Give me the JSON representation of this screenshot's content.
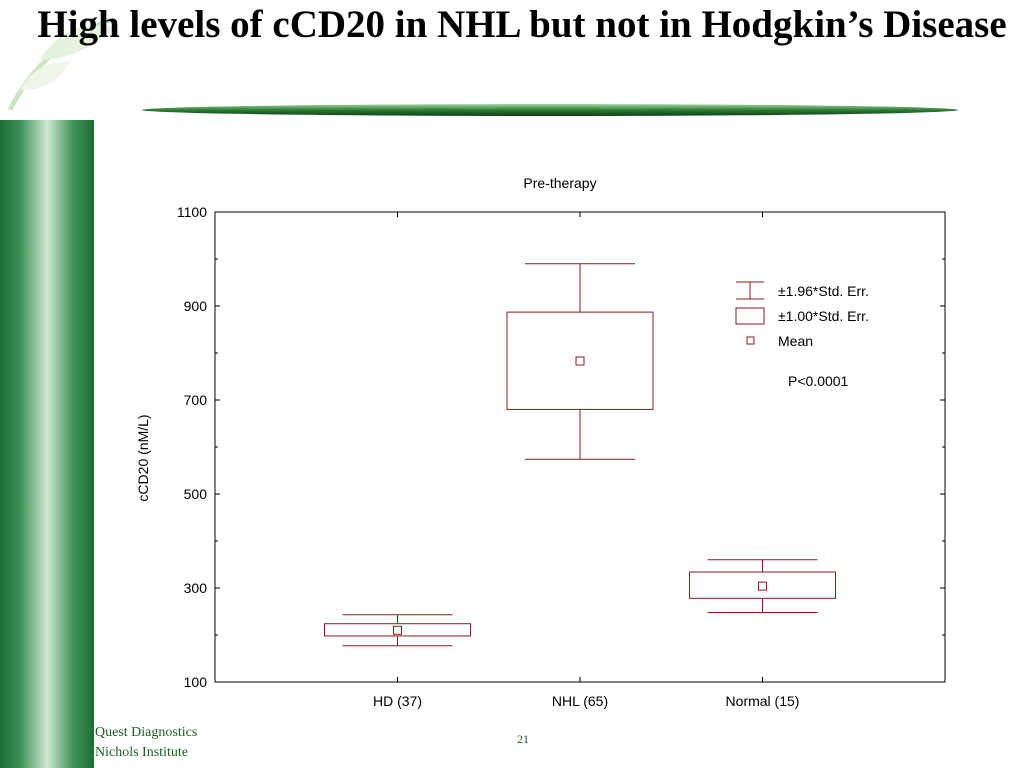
{
  "slide": {
    "title": "High levels of cCD20 in NHL but not in Hodgkin’s Disease",
    "footer": [
      "Quest Diagnostics",
      "Nichols Institute"
    ],
    "page_number": "21"
  },
  "colors": {
    "series": "#8b1a1a",
    "sidebar_green": "#1d6b35",
    "divider_green": "#2e7d32"
  },
  "chart_data": {
    "type": "box",
    "title": "Pre-therapy",
    "xlabel": "",
    "ylabel": "cCD20 (nM/L)",
    "ylim": [
      100,
      1100
    ],
    "yticks": [
      100,
      300,
      500,
      700,
      900,
      1100
    ],
    "categories": [
      "HD (37)",
      "NHL (65)",
      "Normal (15)"
    ],
    "series": [
      {
        "category": "HD (37)",
        "mean": 210,
        "box_low": 198,
        "box_high": 224,
        "whisker_low": 177,
        "whisker_high": 243
      },
      {
        "category": "NHL (65)",
        "mean": 783,
        "box_low": 680,
        "box_high": 887,
        "whisker_low": 574,
        "whisker_high": 990
      },
      {
        "category": "Normal (15)",
        "mean": 304,
        "box_low": 278,
        "box_high": 334,
        "whisker_low": 248,
        "whisker_high": 360
      }
    ],
    "legend": {
      "placement": "top-right",
      "entries": [
        "±1.96*Std. Err.",
        "±1.00*Std. Err.",
        "Mean"
      ]
    },
    "annotation": "P<0.0001"
  }
}
